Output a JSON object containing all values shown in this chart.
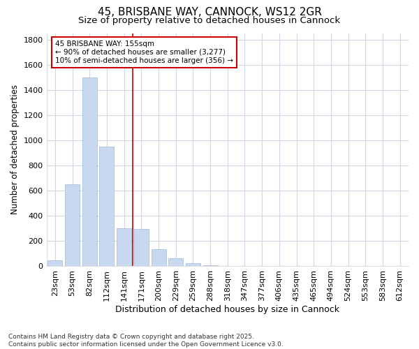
{
  "title1": "45, BRISBANE WAY, CANNOCK, WS12 2GR",
  "title2": "Size of property relative to detached houses in Cannock",
  "xlabel": "Distribution of detached houses by size in Cannock",
  "ylabel": "Number of detached properties",
  "categories": [
    "23sqm",
    "53sqm",
    "82sqm",
    "112sqm",
    "141sqm",
    "171sqm",
    "200sqm",
    "229sqm",
    "259sqm",
    "288sqm",
    "318sqm",
    "347sqm",
    "377sqm",
    "406sqm",
    "435sqm",
    "465sqm",
    "494sqm",
    "524sqm",
    "553sqm",
    "583sqm",
    "612sqm"
  ],
  "values": [
    45,
    650,
    1500,
    950,
    300,
    295,
    135,
    65,
    25,
    10,
    5,
    0,
    0,
    0,
    0,
    0,
    0,
    0,
    0,
    0,
    0
  ],
  "bar_color": "#c8d8ee",
  "bar_edge_color": "#a0b8d8",
  "vline_color": "#cc0000",
  "annotation_line1": "45 BRISBANE WAY: 155sqm",
  "annotation_line2": "← 90% of detached houses are smaller (3,277)",
  "annotation_line3": "10% of semi-detached houses are larger (356) →",
  "ylim": [
    0,
    1850
  ],
  "yticks": [
    0,
    200,
    400,
    600,
    800,
    1000,
    1200,
    1400,
    1600,
    1800
  ],
  "bg_color": "#ffffff",
  "plot_bg_color": "#ffffff",
  "grid_color": "#d0d8e8",
  "footer1": "Contains HM Land Registry data © Crown copyright and database right 2025.",
  "footer2": "Contains public sector information licensed under the Open Government Licence v3.0.",
  "title1_fontsize": 11,
  "title2_fontsize": 9.5,
  "xlabel_fontsize": 9,
  "ylabel_fontsize": 8.5,
  "tick_fontsize": 8,
  "annot_fontsize": 7.5,
  "footer_fontsize": 6.5
}
